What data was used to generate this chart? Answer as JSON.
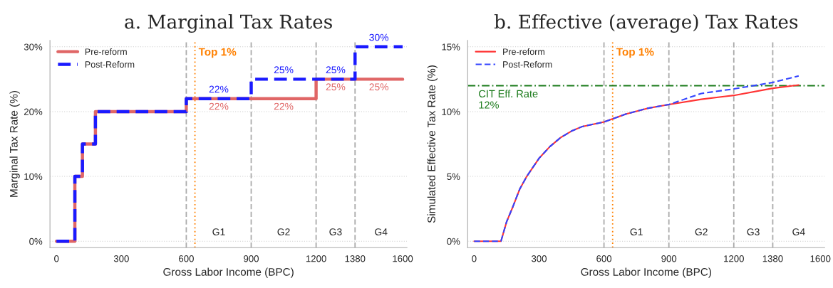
{
  "chart_data": [
    {
      "type": "step",
      "title": "a. Marginal Tax Rates",
      "xlabel": "Gross Labor Income (BPC)",
      "ylabel": "Marginal Tax Rate (%)",
      "xlim": [
        -30,
        1620
      ],
      "xticks": [
        0,
        300,
        600,
        900,
        1200,
        1380,
        1600
      ],
      "ylim": [
        -1,
        31
      ],
      "yticks": [
        {
          "value": 0,
          "label": "0%"
        },
        {
          "value": 10,
          "label": "10%"
        },
        {
          "value": 20,
          "label": "20%"
        },
        {
          "value": 30,
          "label": "30%"
        }
      ],
      "grid": "y",
      "legend": "top left",
      "series": [
        {
          "name": "Pre-reform",
          "color": "#e06666",
          "line_style": "solid",
          "x": [
            0,
            85,
            120,
            180,
            600,
            750,
            1050,
            1200,
            1290,
            1490,
            1600
          ],
          "values": [
            0,
            10,
            15,
            20,
            22,
            22,
            22,
            25,
            25,
            25,
            25
          ],
          "value_labels": [
            null,
            null,
            null,
            null,
            null,
            "22%",
            "22%",
            null,
            "25%",
            "25%",
            null
          ]
        },
        {
          "name": "Post-Reform",
          "color": "#1a1aff",
          "line_style": "dashed",
          "x": [
            0,
            85,
            120,
            180,
            600,
            750,
            900,
            1050,
            1290,
            1380,
            1490,
            1600
          ],
          "values": [
            0,
            10,
            15,
            20,
            22,
            22,
            25,
            25,
            25,
            30,
            30,
            30
          ],
          "value_labels": [
            null,
            null,
            null,
            null,
            null,
            "22%",
            null,
            "25%",
            "25%",
            null,
            "30%",
            null
          ]
        }
      ],
      "ref_lines": [
        {
          "axis": "x",
          "value": 600,
          "color": "#aaaaaa",
          "line_style": "dashed"
        },
        {
          "axis": "x",
          "value": 640,
          "label": "Top 1%",
          "color": "#ff8000",
          "line_style": "dotted"
        },
        {
          "axis": "x",
          "value": 900,
          "color": "#aaaaaa",
          "line_style": "dashed"
        },
        {
          "axis": "x",
          "value": 1200,
          "color": "#aaaaaa",
          "line_style": "dashed"
        },
        {
          "axis": "x",
          "value": 1380,
          "color": "#aaaaaa",
          "line_style": "dashed"
        }
      ],
      "annotations": [
        "G1",
        "G2",
        "G3",
        "G4"
      ]
    },
    {
      "type": "line",
      "title": "b. Effective (average) Tax Rates",
      "xlabel": "Gross Labor Income (BPC)",
      "ylabel": "Simulated Effective Tax Rate (%)",
      "xlim": [
        -30,
        1620
      ],
      "xticks": [
        0,
        300,
        600,
        900,
        1200,
        1380,
        1600
      ],
      "ylim": [
        -0.5,
        15.5
      ],
      "yticks": [
        {
          "value": 0,
          "label": "0%"
        },
        {
          "value": 5,
          "label": "5%"
        },
        {
          "value": 10,
          "label": "10%"
        },
        {
          "value": 15,
          "label": "15%"
        }
      ],
      "grid": "y",
      "legend": "top left",
      "series": [
        {
          "name": "Pre-reform",
          "color": "#ff3333",
          "line_style": "solid",
          "x": [
            0,
            124,
            150,
            180,
            210,
            243,
            300,
            350,
            400,
            450,
            500,
            600,
            700,
            800,
            900,
            1050,
            1200,
            1380,
            1500
          ],
          "values": [
            0,
            0,
            1.5,
            2.7,
            4.0,
            5.0,
            6.4,
            7.3,
            8.0,
            8.5,
            8.85,
            9.2,
            9.8,
            10.25,
            10.55,
            10.95,
            11.25,
            11.8,
            12.05
          ]
        },
        {
          "name": "Post-Reform",
          "color": "#3344ff",
          "line_style": "dashed",
          "x": [
            0,
            124,
            150,
            180,
            210,
            243,
            300,
            350,
            400,
            450,
            500,
            600,
            700,
            800,
            900,
            1050,
            1200,
            1380,
            1500
          ],
          "values": [
            0,
            0,
            1.5,
            2.7,
            4.0,
            5.0,
            6.4,
            7.3,
            8.0,
            8.5,
            8.85,
            9.2,
            9.8,
            10.25,
            10.55,
            11.4,
            11.75,
            12.25,
            12.75
          ]
        }
      ],
      "ref_lines": [
        {
          "axis": "x",
          "value": 600,
          "color": "#aaaaaa",
          "line_style": "dashed"
        },
        {
          "axis": "x",
          "value": 640,
          "label": "Top 1%",
          "color": "#ff8000",
          "line_style": "dotted"
        },
        {
          "axis": "x",
          "value": 900,
          "color": "#aaaaaa",
          "line_style": "dashed"
        },
        {
          "axis": "x",
          "value": 1200,
          "color": "#aaaaaa",
          "line_style": "dashed"
        },
        {
          "axis": "x",
          "value": 1380,
          "color": "#aaaaaa",
          "line_style": "dashed"
        },
        {
          "axis": "y",
          "value": 12,
          "label": "CIT Eff. Rate\n12%",
          "color": "#1a7a1a",
          "line_style": "dashdot"
        }
      ],
      "annotations": [
        "G1",
        "G2",
        "G3",
        "G4"
      ]
    }
  ]
}
